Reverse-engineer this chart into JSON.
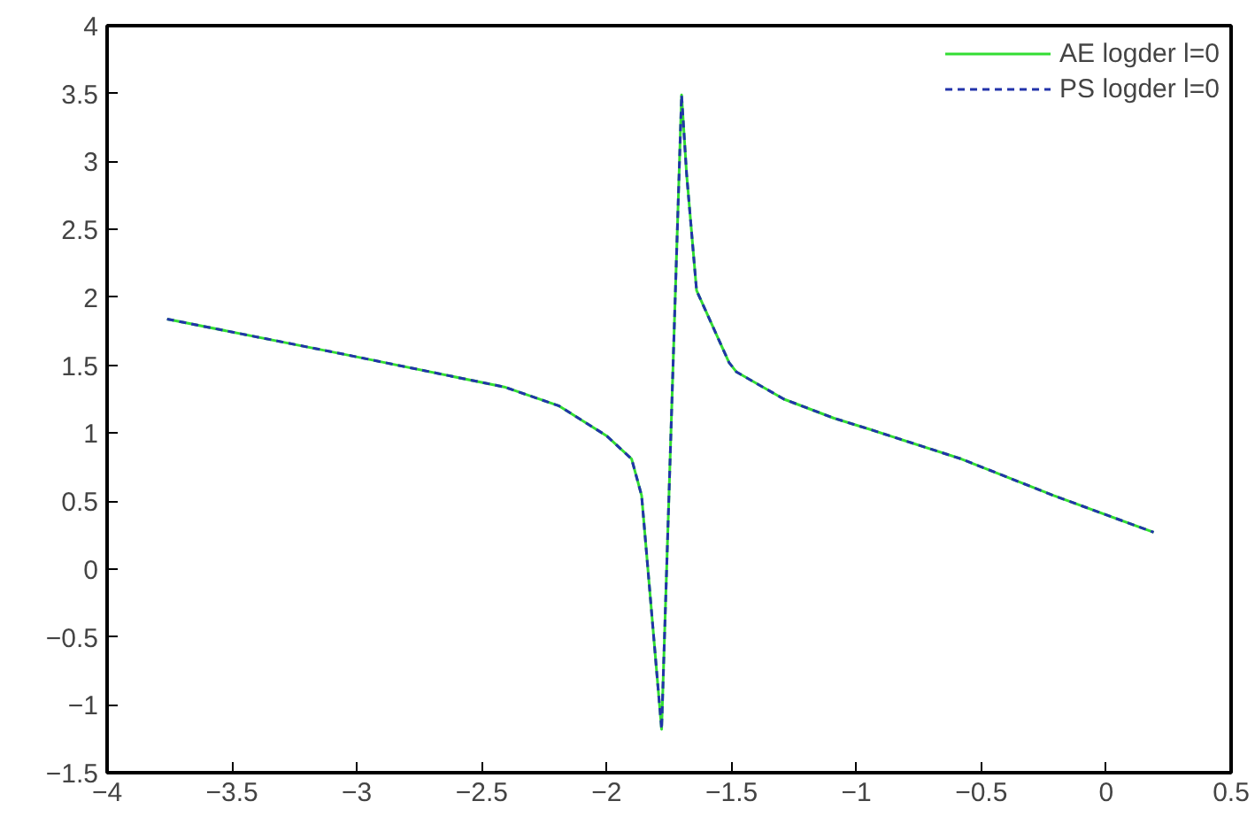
{
  "chart_data": {
    "type": "line",
    "xlim": [
      -4,
      0.5
    ],
    "ylim": [
      -1.5,
      4
    ],
    "xticks": [
      -4,
      -3.5,
      -3,
      -2.5,
      -2,
      -1.5,
      -1,
      -0.5,
      0,
      0.5
    ],
    "yticks": [
      -1.5,
      -1,
      -0.5,
      0,
      0.5,
      1,
      1.5,
      2,
      2.5,
      3,
      3.5,
      4
    ],
    "grid": false,
    "legend": "top right",
    "x": [
      -3.76,
      -3.05,
      -2.41,
      -2.19,
      -2.0,
      -1.9,
      -1.86,
      -1.78,
      -1.7,
      -1.68,
      -1.64,
      -1.51,
      -1.48,
      -1.29,
      -1.09,
      -0.95,
      -0.58,
      -0.21,
      0.19
    ],
    "series": [
      {
        "name": "AE logder l=0",
        "color": "#33dd33",
        "line_style": "solid",
        "values": [
          1.84,
          1.58,
          1.34,
          1.2,
          0.98,
          0.81,
          0.54,
          -1.18,
          3.49,
          2.91,
          2.05,
          1.52,
          1.45,
          1.25,
          1.11,
          1.03,
          0.81,
          0.54,
          0.27
        ]
      },
      {
        "name": "PS logder l=0",
        "color": "#2233aa",
        "line_style": "dashed",
        "values": [
          1.84,
          1.58,
          1.34,
          1.2,
          0.98,
          0.81,
          0.54,
          -1.18,
          3.49,
          2.91,
          2.05,
          1.52,
          1.45,
          1.25,
          1.11,
          1.03,
          0.81,
          0.54,
          0.27
        ]
      }
    ]
  }
}
